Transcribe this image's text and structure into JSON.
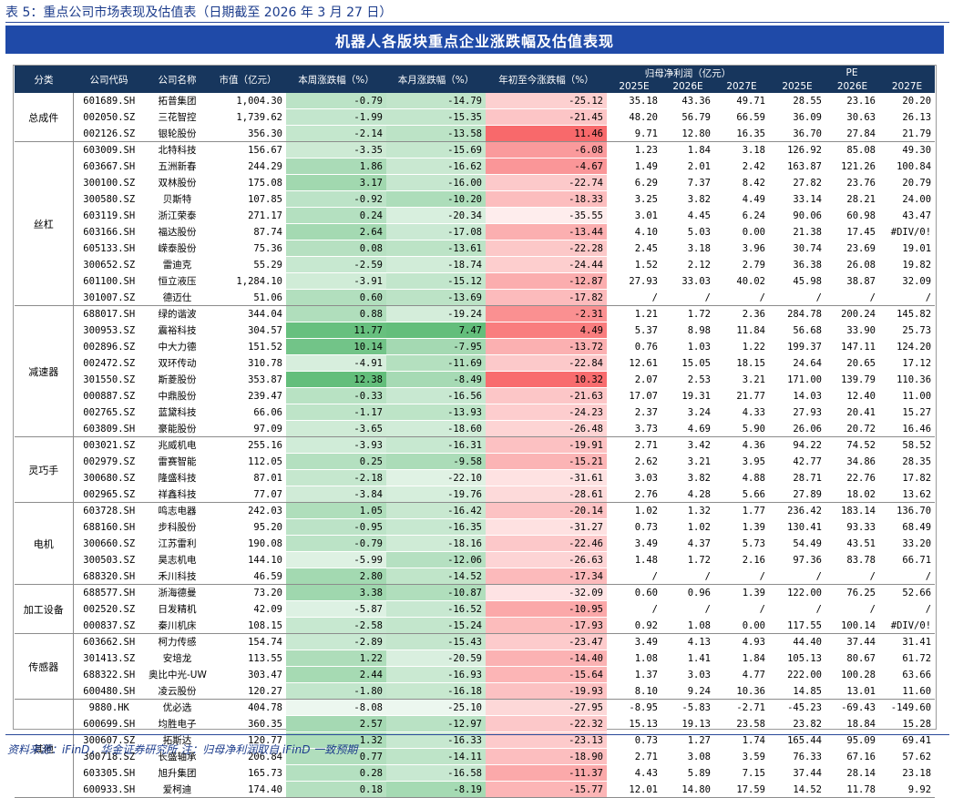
{
  "doc_title": "表 5：重点公司市场表现及估值表（日期截至 2026 年 3 月 27 日）",
  "banner_title": "机器人各版块重点企业涨跌幅及估值表现",
  "header": {
    "category": "分类",
    "code": "公司代码",
    "name": "公司名称",
    "mktcap": "市值（亿元）",
    "week": "本周涨跌幅（%）",
    "month": "本月涨跌幅（%）",
    "ytd": "年初至今涨跌幅（%）",
    "profit_group": "归母净利润（亿元）",
    "pe_group": "PE",
    "years": [
      "2025E",
      "2026E",
      "2027E",
      "2025E",
      "2026E",
      "2027E"
    ]
  },
  "colors": {
    "header_bg": "#17365d",
    "banner_bg": "#1f4aa8",
    "week_pos": "#63be7b",
    "month_neg": "#63be7b",
    "ytd_neg": "#f8696b"
  },
  "groups": [
    {
      "name": "总成件",
      "rows": [
        [
          "601689.SH",
          "拓普集团",
          "1,004.30",
          "-0.79",
          "-14.79",
          "-25.12",
          "35.18",
          "43.36",
          "49.71",
          "28.55",
          "23.16",
          "20.20"
        ],
        [
          "002050.SZ",
          "三花智控",
          "1,739.62",
          "-1.99",
          "-15.35",
          "-21.45",
          "48.20",
          "56.79",
          "66.59",
          "36.09",
          "30.63",
          "26.13"
        ],
        [
          "002126.SZ",
          "银轮股份",
          "356.30",
          "-2.14",
          "-13.58",
          "11.46",
          "9.71",
          "12.80",
          "16.35",
          "36.70",
          "27.84",
          "21.79"
        ]
      ]
    },
    {
      "name": "丝杠",
      "rows": [
        [
          "603009.SH",
          "北特科技",
          "156.67",
          "-3.35",
          "-15.69",
          "-6.08",
          "1.23",
          "1.84",
          "3.18",
          "126.92",
          "85.08",
          "49.30"
        ],
        [
          "603667.SH",
          "五洲新春",
          "244.29",
          "1.86",
          "-16.62",
          "-4.67",
          "1.49",
          "2.01",
          "2.42",
          "163.87",
          "121.26",
          "100.84"
        ],
        [
          "300100.SZ",
          "双林股份",
          "175.08",
          "3.17",
          "-16.00",
          "-22.74",
          "6.29",
          "7.37",
          "8.42",
          "27.82",
          "23.76",
          "20.79"
        ],
        [
          "300580.SZ",
          "贝斯特",
          "107.85",
          "-0.92",
          "-10.20",
          "-18.33",
          "3.25",
          "3.82",
          "4.49",
          "33.14",
          "28.21",
          "24.00"
        ],
        [
          "603119.SH",
          "浙江荣泰",
          "271.17",
          "0.24",
          "-20.34",
          "-35.55",
          "3.01",
          "4.45",
          "6.24",
          "90.06",
          "60.98",
          "43.47"
        ],
        [
          "603166.SH",
          "福达股份",
          "87.74",
          "2.64",
          "-17.08",
          "-13.44",
          "4.10",
          "5.03",
          "0.00",
          "21.38",
          "17.45",
          "#DIV/0!"
        ],
        [
          "605133.SH",
          "嵘泰股份",
          "75.36",
          "0.08",
          "-13.61",
          "-22.28",
          "2.45",
          "3.18",
          "3.96",
          "30.74",
          "23.69",
          "19.01"
        ],
        [
          "300652.SZ",
          "雷迪克",
          "55.29",
          "-2.59",
          "-18.74",
          "-24.44",
          "1.52",
          "2.12",
          "2.79",
          "36.38",
          "26.08",
          "19.82"
        ],
        [
          "601100.SH",
          "恒立液压",
          "1,284.10",
          "-3.91",
          "-15.12",
          "-12.87",
          "27.93",
          "33.03",
          "40.02",
          "45.98",
          "38.87",
          "32.09"
        ],
        [
          "301007.SZ",
          "德迈仕",
          "51.06",
          "0.60",
          "-13.69",
          "-17.82",
          "/",
          "/",
          "/",
          "/",
          "/",
          "/"
        ]
      ]
    },
    {
      "name": "减速器",
      "rows": [
        [
          "688017.SH",
          "绿的谐波",
          "344.04",
          "0.88",
          "-19.24",
          "-2.31",
          "1.21",
          "1.72",
          "2.36",
          "284.78",
          "200.24",
          "145.82"
        ],
        [
          "300953.SZ",
          "震裕科技",
          "304.57",
          "11.77",
          "7.47",
          "4.49",
          "5.37",
          "8.98",
          "11.84",
          "56.68",
          "33.90",
          "25.73"
        ],
        [
          "002896.SZ",
          "中大力德",
          "151.52",
          "10.14",
          "-7.95",
          "-13.72",
          "0.76",
          "1.03",
          "1.22",
          "199.37",
          "147.11",
          "124.20"
        ],
        [
          "002472.SZ",
          "双环传动",
          "310.78",
          "-4.91",
          "-11.69",
          "-22.84",
          "12.61",
          "15.05",
          "18.15",
          "24.64",
          "20.65",
          "17.12"
        ],
        [
          "301550.SZ",
          "斯菱股份",
          "353.87",
          "12.38",
          "-8.49",
          "10.32",
          "2.07",
          "2.53",
          "3.21",
          "171.00",
          "139.79",
          "110.36"
        ],
        [
          "000887.SZ",
          "中鼎股份",
          "239.47",
          "-0.33",
          "-16.56",
          "-21.63",
          "17.07",
          "19.31",
          "21.77",
          "14.03",
          "12.40",
          "11.00"
        ],
        [
          "002765.SZ",
          "蓝黛科技",
          "66.06",
          "-1.17",
          "-13.93",
          "-24.23",
          "2.37",
          "3.24",
          "4.33",
          "27.93",
          "20.41",
          "15.27"
        ],
        [
          "603809.SH",
          "豪能股份",
          "97.09",
          "-3.65",
          "-18.60",
          "-26.48",
          "3.73",
          "4.69",
          "5.90",
          "26.06",
          "20.72",
          "16.46"
        ]
      ]
    },
    {
      "name": "灵巧手",
      "rows": [
        [
          "003021.SZ",
          "兆威机电",
          "255.16",
          "-3.93",
          "-16.31",
          "-19.91",
          "2.71",
          "3.42",
          "4.36",
          "94.22",
          "74.52",
          "58.52"
        ],
        [
          "002979.SZ",
          "雷赛智能",
          "112.05",
          "0.25",
          "-9.58",
          "-15.21",
          "2.62",
          "3.21",
          "3.95",
          "42.77",
          "34.86",
          "28.35"
        ],
        [
          "300680.SZ",
          "隆盛科技",
          "87.01",
          "-2.18",
          "-22.10",
          "-31.61",
          "3.03",
          "3.82",
          "4.88",
          "28.71",
          "22.76",
          "17.82"
        ],
        [
          "002965.SZ",
          "祥鑫科技",
          "77.07",
          "-3.84",
          "-19.76",
          "-28.61",
          "2.76",
          "4.28",
          "5.66",
          "27.89",
          "18.02",
          "13.62"
        ]
      ]
    },
    {
      "name": "电机",
      "rows": [
        [
          "603728.SH",
          "鸣志电器",
          "242.03",
          "1.05",
          "-16.42",
          "-20.14",
          "1.02",
          "1.32",
          "1.77",
          "236.42",
          "183.14",
          "136.70"
        ],
        [
          "688160.SH",
          "步科股份",
          "95.20",
          "-0.95",
          "-16.35",
          "-31.27",
          "0.73",
          "1.02",
          "1.39",
          "130.41",
          "93.33",
          "68.49"
        ],
        [
          "300660.SZ",
          "江苏雷利",
          "190.08",
          "-0.79",
          "-18.16",
          "-22.46",
          "3.49",
          "4.37",
          "5.73",
          "54.49",
          "43.51",
          "33.20"
        ],
        [
          "300503.SZ",
          "昊志机电",
          "144.10",
          "-5.99",
          "-12.06",
          "-26.63",
          "1.48",
          "1.72",
          "2.16",
          "97.36",
          "83.78",
          "66.71"
        ],
        [
          "688320.SH",
          "禾川科技",
          "46.59",
          "2.80",
          "-14.52",
          "-17.34",
          "/",
          "/",
          "/",
          "/",
          "/",
          "/"
        ]
      ]
    },
    {
      "name": "加工设备",
      "rows": [
        [
          "688577.SH",
          "浙海德曼",
          "73.20",
          "3.38",
          "-10.87",
          "-32.09",
          "0.60",
          "0.96",
          "1.39",
          "122.00",
          "76.25",
          "52.66"
        ],
        [
          "002520.SZ",
          "日发精机",
          "42.09",
          "-5.87",
          "-16.52",
          "-10.95",
          "/",
          "/",
          "/",
          "/",
          "/",
          "/"
        ],
        [
          "000837.SZ",
          "秦川机床",
          "108.15",
          "-2.58",
          "-15.24",
          "-17.93",
          "0.92",
          "1.08",
          "0.00",
          "117.55",
          "100.14",
          "#DIV/0!"
        ]
      ]
    },
    {
      "name": "传感器",
      "rows": [
        [
          "603662.SH",
          "柯力传感",
          "154.74",
          "-2.89",
          "-15.43",
          "-23.47",
          "3.49",
          "4.13",
          "4.93",
          "44.40",
          "37.44",
          "31.41"
        ],
        [
          "301413.SZ",
          "安培龙",
          "113.55",
          "1.22",
          "-20.59",
          "-14.40",
          "1.08",
          "1.41",
          "1.84",
          "105.13",
          "80.67",
          "61.72"
        ],
        [
          "688322.SH",
          "奥比中光-UW",
          "303.47",
          "2.44",
          "-16.93",
          "-15.64",
          "1.37",
          "3.03",
          "4.77",
          "222.00",
          "100.28",
          "63.66"
        ],
        [
          "600480.SH",
          "凌云股份",
          "120.27",
          "-1.80",
          "-16.18",
          "-19.93",
          "8.10",
          "9.24",
          "10.36",
          "14.85",
          "13.01",
          "11.60"
        ]
      ]
    },
    {
      "name": "其他",
      "rows": [
        [
          "9880.HK",
          "优必选",
          "404.78",
          "-8.08",
          "-25.10",
          "-27.95",
          "-8.95",
          "-5.83",
          "-2.71",
          "-45.23",
          "-69.43",
          "-149.60"
        ],
        [
          "600699.SH",
          "均胜电子",
          "360.35",
          "2.57",
          "-12.97",
          "-22.32",
          "15.13",
          "19.13",
          "23.58",
          "23.82",
          "18.84",
          "15.28"
        ],
        [
          "300607.SZ",
          "拓斯达",
          "120.77",
          "1.32",
          "-16.33",
          "-23.13",
          "0.73",
          "1.27",
          "1.74",
          "165.44",
          "95.09",
          "69.41"
        ],
        [
          "300718.SZ",
          "长盛轴承",
          "206.84",
          "0.77",
          "-14.11",
          "-18.90",
          "2.71",
          "3.08",
          "3.59",
          "76.33",
          "67.16",
          "57.62"
        ],
        [
          "603305.SH",
          "旭升集团",
          "165.73",
          "0.28",
          "-16.58",
          "-11.37",
          "4.43",
          "5.89",
          "7.15",
          "37.44",
          "28.14",
          "23.18"
        ],
        [
          "600933.SH",
          "爱柯迪",
          "174.40",
          "0.18",
          "-8.19",
          "-15.77",
          "12.01",
          "14.80",
          "17.59",
          "14.52",
          "11.78",
          "9.92"
        ]
      ]
    }
  ],
  "source_note": "资料来源：iFinD，华金证券研究所 注：归母净利润取自 iFinD 一致预期"
}
